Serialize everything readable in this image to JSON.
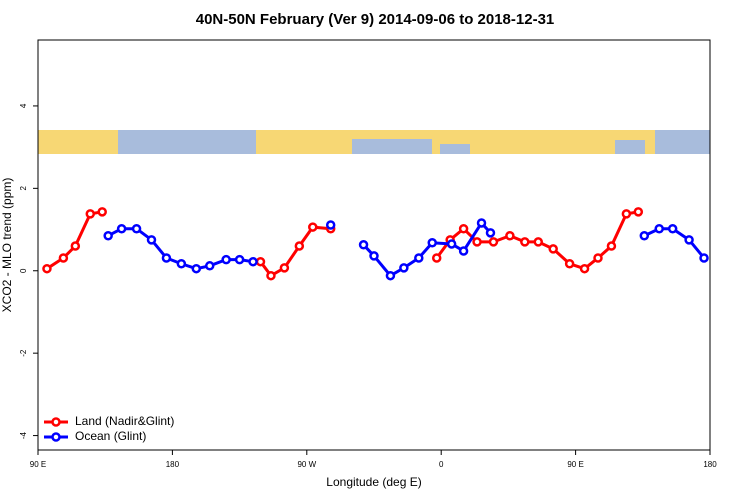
{
  "chart_data": {
    "type": "line",
    "title": "40N-50N February (Ver 9)   2014-09-06 to 2018-12-31",
    "xlabel": "Longitude (deg E)",
    "ylabel": "XCO2 - MLO trend (ppm)",
    "xlim": [
      90,
      540
    ],
    "ylim": [
      -4.35,
      5.6
    ],
    "xticks": [
      {
        "value": 90,
        "label": "90 E"
      },
      180,
      {
        "value": 270,
        "label": "90 W"
      },
      {
        "value": 360,
        "label": "0"
      },
      {
        "value": 450,
        "label": "90 E"
      },
      {
        "value": 540,
        "label": "180"
      }
    ],
    "yticks": [
      -4,
      -2,
      0,
      2,
      4
    ],
    "legend": "bottom-left",
    "series": [
      {
        "name": "Land (Nadir&Glint)",
        "color": "#ff0000",
        "x": [
          96,
          107,
          115,
          125,
          133,
          null,
          239,
          246,
          255,
          265,
          274,
          286,
          null,
          357,
          366,
          375,
          384,
          395,
          406,
          416,
          425,
          435,
          446,
          456,
          465,
          474,
          484,
          492
        ],
        "values": [
          0.05,
          0.31,
          0.6,
          1.38,
          1.43,
          null,
          0.22,
          -0.12,
          0.07,
          0.6,
          1.06,
          1.02,
          null,
          0.31,
          0.75,
          1.02,
          0.7,
          0.7,
          0.85,
          0.7,
          0.7,
          0.53,
          0.17,
          0.05,
          0.31,
          0.6,
          1.38,
          1.43
        ]
      },
      {
        "name": "Ocean (Glint)",
        "color": "#0000ff",
        "x": [
          137,
          146,
          156,
          166,
          176,
          186,
          196,
          205,
          216,
          225,
          234,
          null,
          286,
          null,
          308,
          315,
          326,
          335,
          345,
          354,
          367,
          375,
          387,
          393,
          null,
          496,
          506,
          515,
          526,
          536
        ],
        "values": [
          0.85,
          1.02,
          1.02,
          0.75,
          0.31,
          0.17,
          0.05,
          0.12,
          0.27,
          0.27,
          0.22,
          null,
          1.11,
          null,
          0.63,
          0.36,
          -0.12,
          0.07,
          0.31,
          0.68,
          0.65,
          0.48,
          1.16,
          0.92,
          null,
          0.85,
          1.02,
          1.02,
          0.75,
          0.31
        ]
      }
    ]
  }
}
